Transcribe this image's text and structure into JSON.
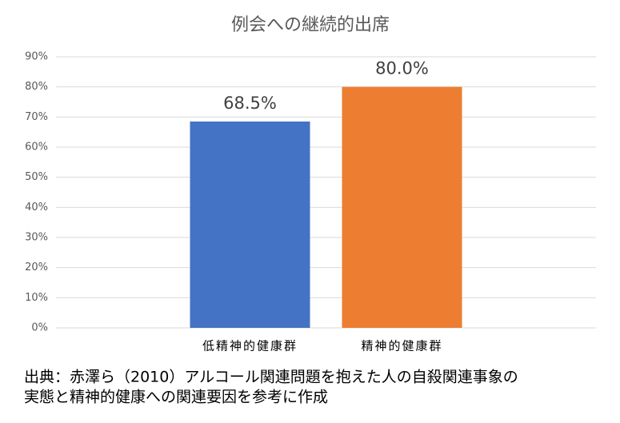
{
  "chart_data": {
    "type": "bar",
    "title": "例会への継続的出席",
    "categories": [
      "低精神的健康群",
      "精神的健康群"
    ],
    "values": [
      68.5,
      80.0
    ],
    "value_labels": [
      "68.5%",
      "80.0%"
    ],
    "colors": [
      "#4472c4",
      "#ed7d31"
    ],
    "ylim": [
      0,
      90
    ],
    "yticks": [
      {
        "value": 0,
        "label": "0%"
      },
      {
        "value": 10,
        "label": "10%"
      },
      {
        "value": 20,
        "label": "20%"
      },
      {
        "value": 30,
        "label": "30%"
      },
      {
        "value": 40,
        "label": "40%"
      },
      {
        "value": 50,
        "label": "50%"
      },
      {
        "value": 60,
        "label": "60%"
      },
      {
        "value": 70,
        "label": "70%"
      },
      {
        "value": 80,
        "label": "80%"
      },
      {
        "value": 90,
        "label": "90%"
      }
    ],
    "grid": true,
    "source": [
      "出典：赤澤ら（2010）アルコール関連問題を抱えた人の自殺関連事象の",
      "実態と精神的健康への関連要因を参考に作成"
    ]
  }
}
